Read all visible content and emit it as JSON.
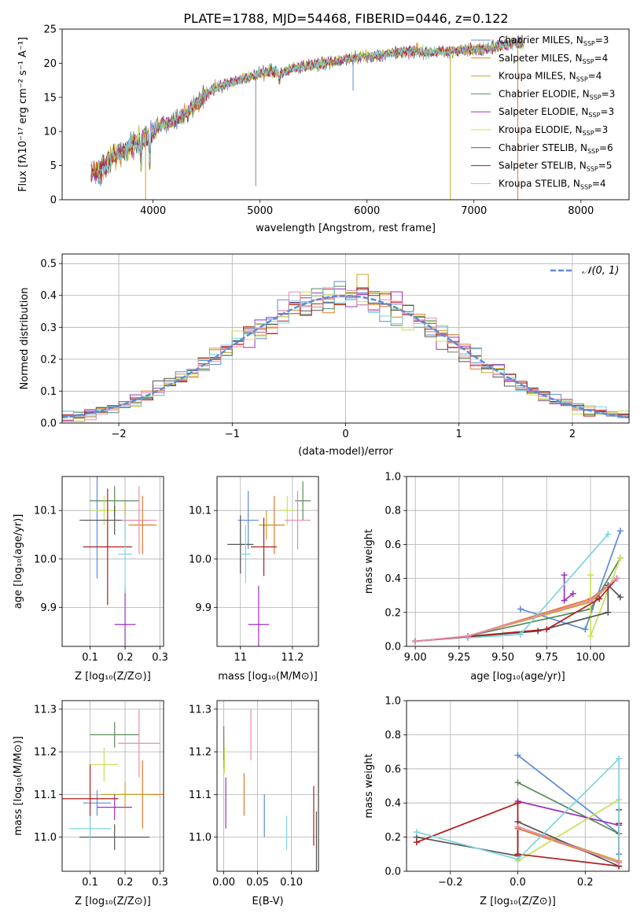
{
  "figure_title": "PLATE=1788, MJD=54468, FIBERID=0446, z=0.122",
  "colors": {
    "Chabrier MILES": "#5b8bd9",
    "Salpeter MILES": "#e07b2a",
    "Kroupa MILES": "#c9a227",
    "Chabrier ELODIE": "#5a8a5a",
    "Salpeter ELODIE": "#9b30c0",
    "Kroupa ELODIE": "#c8e05a",
    "Chabrier STELIB": "#555555",
    "Salpeter STELIB": "#b01c1c",
    "Kroupa STELIB": "#7fd3e3",
    "Pink": "#e88bb0"
  },
  "chart_data": [
    {
      "type": "line",
      "id": "spectrum",
      "xlabel": "wavelength [Angstrom, rest frame]",
      "ylabel": "Flux [fλ10⁻¹⁷ erg cm⁻² s⁻¹ A⁻¹]",
      "xlim": [
        3150,
        8450
      ],
      "ylim": [
        0,
        25
      ],
      "xticks": [
        4000,
        5000,
        6000,
        7000,
        8000
      ],
      "yticks": [
        0,
        5,
        10,
        15,
        20,
        25
      ],
      "legend_position": "right",
      "series": [
        {
          "name": "Chabrier MILES, N_SSP=3",
          "label": "Chabrier MILES, N",
          "sub": "SSP",
          "tail": "=3"
        },
        {
          "name": "Salpeter MILES, N_SSP=4",
          "label": "Salpeter MILES, N",
          "sub": "SSP",
          "tail": "=4"
        },
        {
          "name": "Kroupa MILES, N_SSP=4",
          "label": "Kroupa MILES, N",
          "sub": "SSP",
          "tail": "=4"
        },
        {
          "name": "Chabrier ELODIE, N_SSP=3",
          "label": "Chabrier ELODIE, N",
          "sub": "SSP",
          "tail": "=3"
        },
        {
          "name": "Salpeter ELODIE, N_SSP=3",
          "label": "Salpeter ELODIE, N",
          "sub": "SSP",
          "tail": "=3"
        },
        {
          "name": "Kroupa ELODIE, N_SSP=3",
          "label": "Kroupa ELODIE, N",
          "sub": "SSP",
          "tail": "=3"
        },
        {
          "name": "Chabrier STELIB, N_SSP=6",
          "label": "Chabrier STELIB, N",
          "sub": "SSP",
          "tail": "=6"
        },
        {
          "name": "Salpeter STELIB, N_SSP=5",
          "label": "Salpeter STELIB, N",
          "sub": "SSP",
          "tail": "=5"
        },
        {
          "name": "Kroupa STELIB, N_SSP=4",
          "label": "Kroupa STELIB, N",
          "sub": "SSP",
          "tail": "=4"
        }
      ],
      "continuum_points": [
        [
          3400,
          4.0
        ],
        [
          3500,
          4.0
        ],
        [
          3650,
          6.5
        ],
        [
          3800,
          8.0
        ],
        [
          3900,
          9.0
        ],
        [
          4000,
          10.0
        ],
        [
          4100,
          11.0
        ],
        [
          4200,
          11.5
        ],
        [
          4300,
          12.5
        ],
        [
          4400,
          14.0
        ],
        [
          4500,
          15.5
        ],
        [
          4600,
          16.5
        ],
        [
          4700,
          17.0
        ],
        [
          4800,
          17.5
        ],
        [
          4900,
          18.0
        ],
        [
          5000,
          18.5
        ],
        [
          5100,
          18.8
        ],
        [
          5200,
          18.7
        ],
        [
          5300,
          19.2
        ],
        [
          5400,
          19.5
        ],
        [
          5500,
          19.8
        ],
        [
          5600,
          20.0
        ],
        [
          5700,
          20.2
        ],
        [
          5800,
          20.5
        ],
        [
          5900,
          20.8
        ],
        [
          6000,
          21.0
        ],
        [
          6200,
          21.3
        ],
        [
          6400,
          21.8
        ],
        [
          6600,
          21.5
        ],
        [
          6800,
          21.8
        ],
        [
          7000,
          22.0
        ],
        [
          7200,
          22.5
        ],
        [
          7400,
          23.0
        ]
      ]
    },
    {
      "type": "histogram",
      "id": "residuals",
      "xlabel": "(data-model)/error",
      "ylabel": "Normed distribution",
      "xlim": [
        -2.5,
        2.5
      ],
      "ylim": [
        0,
        0.53
      ],
      "xticks": [
        -2,
        -1,
        0,
        1,
        2
      ],
      "xtick_labels": [
        "−2",
        "−1",
        "0",
        "1",
        "2"
      ],
      "yticks": [
        0.0,
        0.1,
        0.2,
        0.3,
        0.4,
        0.5
      ],
      "grid": true,
      "legend_position": "top-right",
      "reference_curve": {
        "name": "N(0,1)",
        "label_main": "𝒩(0, 1)",
        "color": "#5b8bd9",
        "style": "dashed"
      },
      "bin_width": 0.1,
      "bin_start": -2.5
    },
    {
      "type": "scatter",
      "id": "age-vs-Z",
      "xlabel": "Z [log₁₀(Z/Z⊙)]",
      "ylabel": "age  [log₁₀(age/yr)]",
      "xlim": [
        0.02,
        0.31
      ],
      "ylim": [
        9.82,
        10.17
      ],
      "xticks": [
        0.1,
        0.2,
        0.3
      ],
      "yticks": [
        9.9,
        10.0,
        10.1
      ],
      "grid": true,
      "points": [
        {
          "model": "Chabrier MILES",
          "x": 0.12,
          "y": 10.08,
          "xerr": 0.04,
          "yerr": 0.12
        },
        {
          "model": "Salpeter MILES",
          "x": 0.25,
          "y": 10.07,
          "xerr": 0.04,
          "yerr": 0.06
        },
        {
          "model": "Kroupa MILES",
          "x": 0.2,
          "y": 10.08,
          "xerr": 0.06,
          "yerr": 0.04
        },
        {
          "model": "Chabrier ELODIE",
          "x": 0.17,
          "y": 10.12,
          "xerr": 0.07,
          "yerr": 0.03
        },
        {
          "model": "Salpeter ELODIE",
          "x": 0.2,
          "y": 9.865,
          "xerr": 0.03,
          "yerr": 0.08
        },
        {
          "model": "Kroupa ELODIE",
          "x": 0.14,
          "y": 10.1,
          "xerr": 0.04,
          "yerr": 0.03
        },
        {
          "model": "Chabrier STELIB",
          "x": 0.17,
          "y": 10.08,
          "xerr": 0.1,
          "yerr": 0.03
        },
        {
          "model": "Salpeter STELIB",
          "x": 0.15,
          "y": 10.025,
          "xerr": 0.07,
          "yerr": 0.12
        },
        {
          "model": "Kroupa STELIB",
          "x": 0.2,
          "y": 10.01,
          "xerr": 0.02,
          "yerr": 0.08
        },
        {
          "model": "Pink",
          "x": 0.24,
          "y": 10.08,
          "xerr": 0.05,
          "yerr": 0.07
        }
      ]
    },
    {
      "type": "scatter",
      "id": "age-vs-mass",
      "xlabel": "mass [log₁₀(M/M⊙)]",
      "ylabel": "",
      "xlim": [
        10.91,
        11.3
      ],
      "ylim": [
        9.82,
        10.17
      ],
      "xticks": [
        11.0,
        11.2
      ],
      "yticks": [
        9.9,
        10.0,
        10.1
      ],
      "grid": true,
      "points": [
        {
          "model": "Chabrier MILES",
          "x": 11.03,
          "y": 10.08,
          "xerr": 0.04,
          "yerr": 0.06
        },
        {
          "model": "Salpeter MILES",
          "x": 11.13,
          "y": 10.07,
          "xerr": 0.04,
          "yerr": 0.06
        },
        {
          "model": "Kroupa MILES",
          "x": 11.1,
          "y": 10.07,
          "xerr": 0.03,
          "yerr": 0.03
        },
        {
          "model": "Chabrier ELODIE",
          "x": 11.24,
          "y": 10.12,
          "xerr": 0.03,
          "yerr": 0.04
        },
        {
          "model": "Salpeter ELODIE",
          "x": 11.07,
          "y": 9.865,
          "xerr": 0.04,
          "yerr": 0.08
        },
        {
          "model": "Kroupa ELODIE",
          "x": 11.18,
          "y": 10.1,
          "xerr": 0.03,
          "yerr": 0.03
        },
        {
          "model": "Chabrier STELIB",
          "x": 11.0,
          "y": 10.03,
          "xerr": 0.05,
          "yerr": 0.06
        },
        {
          "model": "Salpeter STELIB",
          "x": 11.09,
          "y": 10.025,
          "xerr": 0.05,
          "yerr": 0.06
        },
        {
          "model": "Kroupa STELIB",
          "x": 11.02,
          "y": 10.01,
          "xerr": 0.02,
          "yerr": 0.06
        },
        {
          "model": "Pink",
          "x": 11.22,
          "y": 10.08,
          "xerr": 0.05,
          "yerr": 0.06
        }
      ]
    },
    {
      "type": "line",
      "id": "mass-weight-vs-age",
      "xlabel": "age  [log₁₀(age/yr)]",
      "ylabel": "mass weight",
      "xlim": [
        8.95,
        10.22
      ],
      "ylim": [
        0,
        1.0
      ],
      "xticks": [
        9.0,
        9.25,
        9.5,
        9.75,
        10.0
      ],
      "xtick_labels": [
        "9.00",
        "9.25",
        "9.50",
        "9.75",
        "10.00"
      ],
      "yticks": [
        0.0,
        0.2,
        0.4,
        0.6,
        0.8,
        1.0
      ],
      "grid": true,
      "series": [
        {
          "model": "Chabrier MILES",
          "points": [
            [
              9.6,
              0.22
            ],
            [
              9.97,
              0.1
            ],
            [
              10.17,
              0.68
            ]
          ]
        },
        {
          "model": "Salpeter MILES",
          "points": [
            [
              9.0,
              0.03
            ],
            [
              9.3,
              0.06
            ],
            [
              10.0,
              0.28
            ],
            [
              10.15,
              0.4
            ]
          ]
        },
        {
          "model": "Kroupa MILES",
          "points": [
            [
              9.0,
              0.03
            ],
            [
              9.3,
              0.06
            ],
            [
              10.0,
              0.26
            ],
            [
              10.15,
              0.4
            ]
          ]
        },
        {
          "model": "Chabrier ELODIE",
          "points": [
            [
              9.3,
              0.06
            ],
            [
              10.0,
              0.22
            ],
            [
              10.17,
              0.52
            ]
          ]
        },
        {
          "model": "Salpeter ELODIE",
          "points": [
            [
              9.85,
              0.42
            ],
            [
              9.85,
              0.27
            ],
            [
              9.9,
              0.31
            ]
          ]
        },
        {
          "model": "Kroupa ELODIE",
          "points": [
            [
              10.0,
              0.42
            ],
            [
              10.0,
              0.06
            ],
            [
              10.17,
              0.52
            ]
          ]
        },
        {
          "model": "Chabrier STELIB",
          "points": [
            [
              9.0,
              0.03
            ],
            [
              9.7,
              0.09
            ],
            [
              10.1,
              0.2
            ],
            [
              10.1,
              0.36
            ],
            [
              10.17,
              0.29
            ]
          ]
        },
        {
          "model": "Salpeter STELIB",
          "points": [
            [
              9.0,
              0.03
            ],
            [
              9.75,
              0.1
            ],
            [
              10.05,
              0.28
            ],
            [
              10.15,
              0.4
            ]
          ]
        },
        {
          "model": "Kroupa STELIB",
          "points": [
            [
              9.3,
              0.05
            ],
            [
              9.6,
              0.07
            ],
            [
              10.1,
              0.66
            ]
          ]
        },
        {
          "model": "Pink",
          "points": [
            [
              9.0,
              0.03
            ],
            [
              9.3,
              0.06
            ],
            [
              10.0,
              0.27
            ],
            [
              10.15,
              0.4
            ]
          ]
        }
      ]
    },
    {
      "type": "scatter",
      "id": "mass-vs-Z",
      "xlabel": "Z [log₁₀(Z/Z⊙)]",
      "ylabel": "mass [log₁₀(M/M⊙)]",
      "xlim": [
        0.02,
        0.31
      ],
      "ylim": [
        10.92,
        11.32
      ],
      "xticks": [
        0.1,
        0.2,
        0.3
      ],
      "yticks": [
        11.0,
        11.1,
        11.2,
        11.3
      ],
      "grid": true,
      "points": [
        {
          "model": "Chabrier MILES",
          "x": 0.12,
          "y": 11.08,
          "xerr": 0.04,
          "yerr": 0.03
        },
        {
          "model": "Salpeter MILES",
          "x": 0.25,
          "y": 11.1,
          "xerr": 0.06,
          "yerr": 0.08
        },
        {
          "model": "Kroupa MILES",
          "x": 0.2,
          "y": 11.1,
          "xerr": 0.07,
          "yerr": 0.03
        },
        {
          "model": "Chabrier ELODIE",
          "x": 0.17,
          "y": 11.24,
          "xerr": 0.07,
          "yerr": 0.03
        },
        {
          "model": "Salpeter ELODIE",
          "x": 0.17,
          "y": 11.07,
          "xerr": 0.05,
          "yerr": 0.03
        },
        {
          "model": "Kroupa ELODIE",
          "x": 0.14,
          "y": 11.17,
          "xerr": 0.04,
          "yerr": 0.04
        },
        {
          "model": "Chabrier STELIB",
          "x": 0.17,
          "y": 11.0,
          "xerr": 0.1,
          "yerr": 0.03
        },
        {
          "model": "Salpeter STELIB",
          "x": 0.1,
          "y": 11.09,
          "xerr": 0.08,
          "yerr": 0.08
        },
        {
          "model": "Kroupa STELIB",
          "x": 0.1,
          "y": 11.02,
          "xerr": 0.06,
          "yerr": 0.03
        },
        {
          "model": "Pink",
          "x": 0.24,
          "y": 11.22,
          "xerr": 0.06,
          "yerr": 0.08
        }
      ]
    },
    {
      "type": "scatter",
      "id": "mass-vs-ebv",
      "xlabel": "E(B-V)",
      "ylabel": "",
      "xlim": [
        -0.01,
        0.14
      ],
      "ylim": [
        10.92,
        11.32
      ],
      "xticks": [
        0.0,
        0.05,
        0.1
      ],
      "xtick_labels": [
        "0.00",
        "0.05",
        "0.10"
      ],
      "yticks": [
        11.0,
        11.1,
        11.2,
        11.3
      ],
      "grid": true,
      "points": [
        {
          "model": "Chabrier MILES",
          "x": 0.06,
          "y": 11.05,
          "yerr": 0.05
        },
        {
          "model": "Salpeter MILES",
          "x": 0.03,
          "y": 11.1,
          "yerr": 0.05
        },
        {
          "model": "Kroupa MILES",
          "x": 0.0,
          "y": 11.2,
          "yerr": 0.04
        },
        {
          "model": "Chabrier ELODIE",
          "x": 0.0,
          "y": 11.22,
          "yerr": 0.04
        },
        {
          "model": "Salpeter ELODIE",
          "x": 0.003,
          "y": 11.08,
          "yerr": 0.06
        },
        {
          "model": "Kroupa ELODIE",
          "x": 0.001,
          "y": 11.18,
          "yerr": 0.03
        },
        {
          "model": "Chabrier STELIB",
          "x": 0.137,
          "y": 10.99,
          "yerr": 0.07
        },
        {
          "model": "Salpeter STELIB",
          "x": 0.133,
          "y": 11.05,
          "yerr": 0.07
        },
        {
          "model": "Kroupa STELIB",
          "x": 0.093,
          "y": 11.01,
          "yerr": 0.04
        },
        {
          "model": "Pink",
          "x": 0.04,
          "y": 11.24,
          "yerr": 0.06
        }
      ]
    },
    {
      "type": "line",
      "id": "mass-weight-vs-Z",
      "xlabel": "Z [log₁₀(Z/Z⊙)]",
      "ylabel": "mass weight",
      "xlim": [
        -0.33,
        0.33
      ],
      "ylim": [
        0,
        1.0
      ],
      "xticks": [
        -0.2,
        0.0,
        0.2
      ],
      "xtick_labels": [
        "−0.2",
        "0.0",
        "0.2"
      ],
      "yticks": [
        0.0,
        0.2,
        0.4,
        0.6,
        0.8,
        1.0
      ],
      "grid": true,
      "series": [
        {
          "model": "Chabrier MILES",
          "points": [
            [
              0.0,
              0.68
            ],
            [
              0.3,
              0.22
            ],
            [
              0.3,
              0.1
            ]
          ]
        },
        {
          "model": "Salpeter MILES",
          "points": [
            [
              0.0,
              0.25
            ],
            [
              0.3,
              0.05
            ]
          ]
        },
        {
          "model": "Kroupa MILES",
          "points": [
            [
              0.0,
              0.26
            ],
            [
              0.3,
              0.06
            ]
          ]
        },
        {
          "model": "Chabrier ELODIE",
          "points": [
            [
              0.0,
              0.52
            ],
            [
              0.3,
              0.22
            ]
          ]
        },
        {
          "model": "Salpeter ELODIE",
          "points": [
            [
              0.0,
              0.41
            ],
            [
              0.3,
              0.27
            ]
          ]
        },
        {
          "model": "Kroupa ELODIE",
          "points": [
            [
              0.0,
              0.06
            ],
            [
              0.3,
              0.42
            ]
          ]
        },
        {
          "model": "Chabrier STELIB",
          "points": [
            [
              -0.3,
              0.2
            ],
            [
              0.0,
              0.09
            ],
            [
              0.0,
              0.29
            ],
            [
              0.3,
              0.03
            ],
            [
              0.3,
              0.36
            ]
          ]
        },
        {
          "model": "Salpeter STELIB",
          "points": [
            [
              -0.3,
              0.17
            ],
            [
              0.0,
              0.4
            ],
            [
              0.0,
              0.1
            ],
            [
              0.3,
              0.03
            ],
            [
              0.3,
              0.28
            ]
          ]
        },
        {
          "model": "Kroupa STELIB",
          "points": [
            [
              -0.3,
              0.23
            ],
            [
              0.0,
              0.07
            ],
            [
              0.3,
              0.66
            ],
            [
              0.3,
              0.05
            ]
          ]
        },
        {
          "model": "Pink",
          "points": [
            [
              0.0,
              0.26
            ],
            [
              0.3,
              0.05
            ]
          ]
        }
      ]
    }
  ]
}
